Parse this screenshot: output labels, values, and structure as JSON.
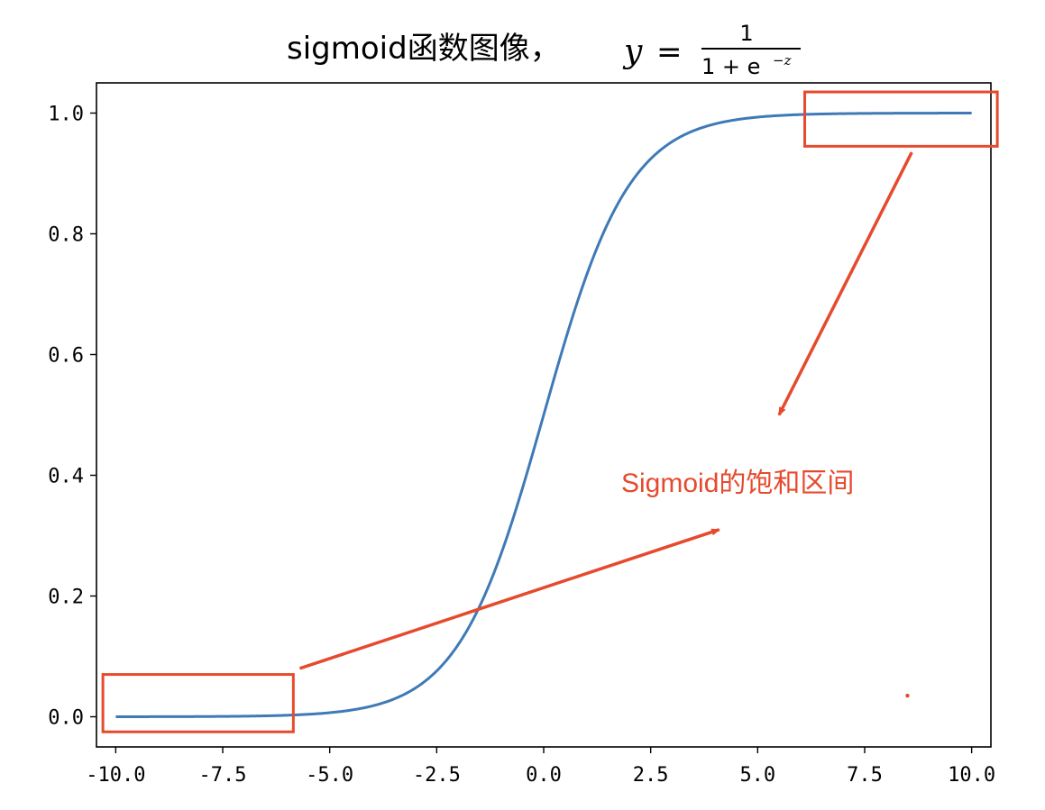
{
  "chart_data": {
    "type": "line",
    "title": "sigmoid函数图像，",
    "title_formula": {
      "lhs": "y",
      "equals": "=",
      "numerator": "1",
      "denominator_base": "1 + e",
      "denominator_exponent": "−z"
    },
    "xlim": [
      -10.45,
      10.45
    ],
    "ylim": [
      -0.05,
      1.05
    ],
    "xticks": [
      -10.0,
      -7.5,
      -5.0,
      -2.5,
      0.0,
      2.5,
      5.0,
      7.5,
      10.0
    ],
    "xtick_labels": [
      "-10.0",
      "-7.5",
      "-5.0",
      "-2.5",
      "0.0",
      "2.5",
      "5.0",
      "7.5",
      "10.0"
    ],
    "yticks": [
      0.0,
      0.2,
      0.4,
      0.6,
      0.8,
      1.0
    ],
    "ytick_labels": [
      "0.0",
      "0.2",
      "0.4",
      "0.6",
      "0.8",
      "1.0"
    ],
    "grid": false,
    "series": [
      {
        "function": "sigmoid",
        "x_range": [
          -10,
          10
        ],
        "color": "#3f7ab6"
      }
    ],
    "annotation": {
      "label": "Sigmoid的饱和区间",
      "color": "#e64a2e",
      "highlight_regions": [
        {
          "x_range": [
            -10.3,
            -5.85
          ],
          "y_range": [
            -0.025,
            0.07
          ]
        },
        {
          "x_range": [
            6.1,
            10.6
          ],
          "y_range": [
            0.945,
            1.035
          ]
        }
      ],
      "arrows": [
        {
          "from": [
            -5.7,
            0.08
          ],
          "to": [
            4.1,
            0.31
          ]
        },
        {
          "from": [
            8.6,
            0.935
          ],
          "to": [
            5.5,
            0.5
          ]
        }
      ],
      "dot": [
        8.5,
        0.035
      ]
    }
  }
}
